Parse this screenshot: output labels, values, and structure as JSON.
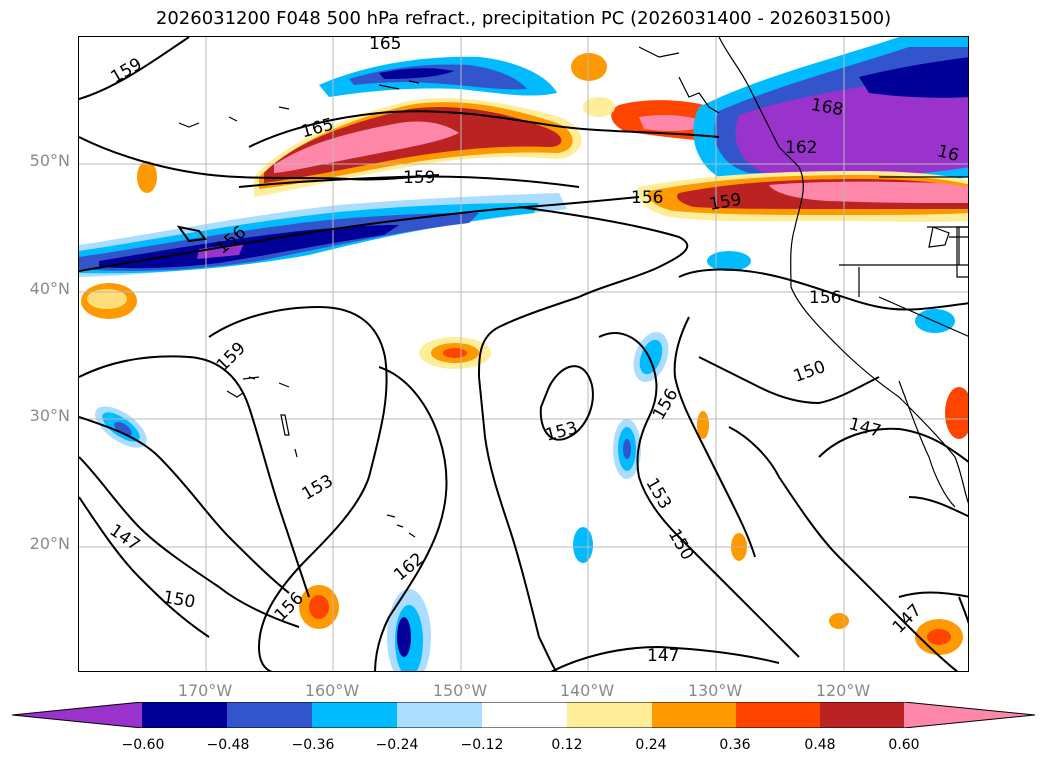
{
  "title": "2026031200 F048 500 hPa refract., precipitation PC (2026031400 - 2026031500)",
  "lat_labels": [
    "50°N",
    "40°N",
    "30°N",
    "20°N"
  ],
  "lon_labels": [
    "170°W",
    "160°W",
    "150°W",
    "140°W",
    "130°W",
    "120°W"
  ],
  "contour_labels": [
    "159",
    "165",
    "165",
    "159",
    "156",
    "168",
    "162",
    "16",
    "156",
    "159",
    "156",
    "159",
    "150",
    "153",
    "156",
    "147",
    "153",
    "153",
    "150",
    "147",
    "150",
    "162",
    "156",
    "147",
    "147"
  ],
  "colorbar": {
    "ticks": [
      "−0.60",
      "−0.48",
      "−0.36",
      "−0.24",
      "−0.12",
      "0.12",
      "0.24",
      "0.36",
      "0.48",
      "0.60"
    ],
    "colors": [
      "#9933cc",
      "#000099",
      "#3355cc",
      "#00bbff",
      "#aaddff",
      "#ffffff",
      "#ffee99",
      "#ff9900",
      "#ff4400",
      "#bb2222",
      "#ff88aa"
    ]
  }
}
